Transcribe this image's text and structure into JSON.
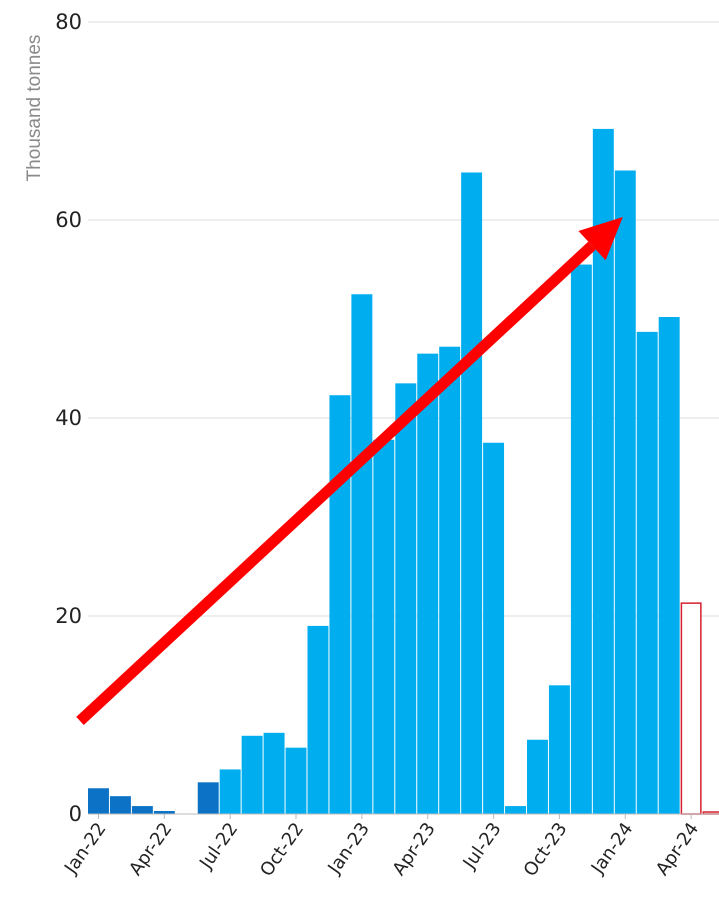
{
  "chart_data": {
    "type": "bar",
    "ylabel": "Thousand tonnes",
    "ylim": [
      0,
      80
    ],
    "yticks": [
      0,
      20,
      40,
      60,
      80
    ],
    "grid": true,
    "xtick_labels": [
      "Jan-22",
      "Apr-22",
      "Jul-22",
      "Oct-22",
      "Jan-23",
      "Apr-23",
      "Jul-23",
      "Oct-23",
      "Jan-24",
      "Apr-24"
    ],
    "months": [
      "Jan-22",
      "Feb-22",
      "Mar-22",
      "Apr-22",
      "May-22",
      "Jun-22",
      "Jul-22",
      "Aug-22",
      "Sep-22",
      "Oct-22",
      "Nov-22",
      "Dec-22",
      "Jan-23",
      "Feb-23",
      "Mar-23",
      "Apr-23",
      "May-23",
      "Jun-23",
      "Jul-23",
      "Aug-23",
      "Sep-23",
      "Oct-23",
      "Nov-23",
      "Dec-23",
      "Jan-24",
      "Feb-24",
      "Mar-24",
      "Apr-24",
      "May-24"
    ],
    "values": [
      2.6,
      1.8,
      0.8,
      0.3,
      0,
      3.2,
      4.5,
      7.9,
      8.2,
      6.7,
      19.0,
      42.3,
      52.5,
      37.8,
      43.5,
      46.5,
      47.2,
      64.8,
      37.5,
      0.8,
      7.5,
      13.0,
      55.5,
      69.2,
      65.0,
      48.7,
      50.2,
      21.3,
      0.2
    ],
    "bar_styles": [
      "dark",
      "dark",
      "dark",
      "dark",
      "dark",
      "dark",
      "light",
      "light",
      "light",
      "light",
      "light",
      "light",
      "light",
      "light",
      "light",
      "light",
      "light",
      "light",
      "light",
      "light",
      "light",
      "light",
      "light",
      "light",
      "light",
      "light",
      "light",
      "outline",
      "outline"
    ],
    "colors": {
      "dark": "#0b72c5",
      "light": "#00adef",
      "outline_stroke": "#d61f2c",
      "arrow": "#ff0000",
      "grid": "#dddddd"
    },
    "annotation": {
      "type": "arrow",
      "from": {
        "month_index": 0,
        "value": 9.4
      },
      "to": {
        "month_index": 24,
        "value": 60.3
      }
    }
  }
}
